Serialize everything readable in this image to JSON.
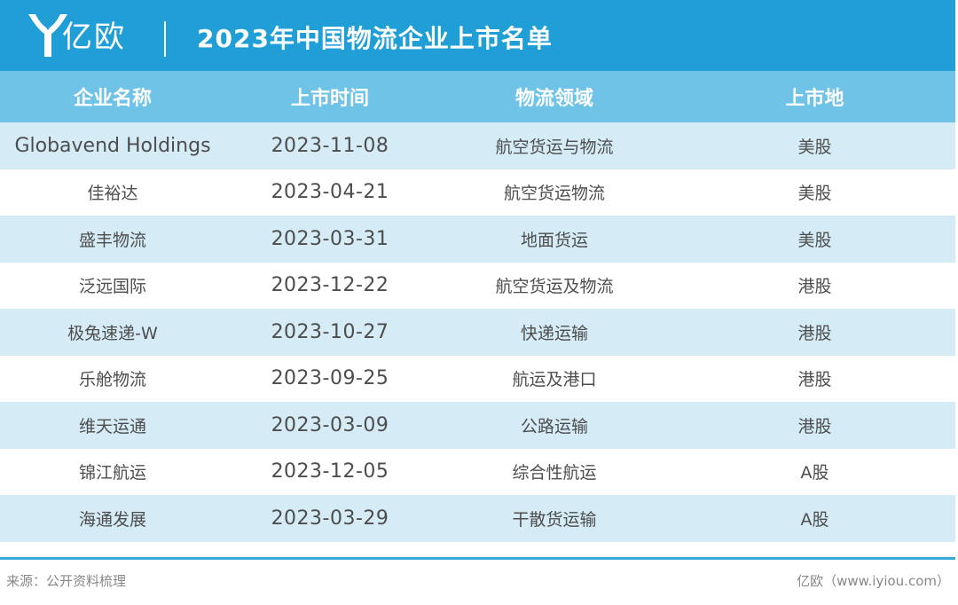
{
  "brand": {
    "name": "亿欧"
  },
  "title": "2023年中国物流企业上市名单",
  "table": {
    "columns": [
      "企业名称",
      "上市时间",
      "物流领域",
      "上市地"
    ],
    "rows": [
      [
        "Globavend Holdings",
        "2023-11-08",
        "航空货运与物流",
        "美股"
      ],
      [
        "佳裕达",
        "2023-04-21",
        "航空货运物流",
        "美股"
      ],
      [
        "盛丰物流",
        "2023-03-31",
        "地面货运",
        "美股"
      ],
      [
        "泛远国际",
        "2023-12-22",
        "航空货运及物流",
        "港股"
      ],
      [
        "极兔速递-W",
        "2023-10-27",
        "快递运输",
        "港股"
      ],
      [
        "乐舱物流",
        "2023-09-25",
        "航运及港口",
        "港股"
      ],
      [
        "维天运通",
        "2023-03-09",
        "公路运输",
        "港股"
      ],
      [
        "锦江航运",
        "2023-12-05",
        "综合性航运",
        "A股"
      ],
      [
        "海通发展",
        "2023-03-29",
        "干散货运输",
        "A股"
      ]
    ]
  },
  "footer": {
    "source": "来源：公开资料梳理",
    "credit": "亿欧（www.iyiou.com）"
  },
  "colors": {
    "header": "#1f9fd6",
    "table_header": "#6fc3e7",
    "row_alt": "#d5ecf7"
  }
}
